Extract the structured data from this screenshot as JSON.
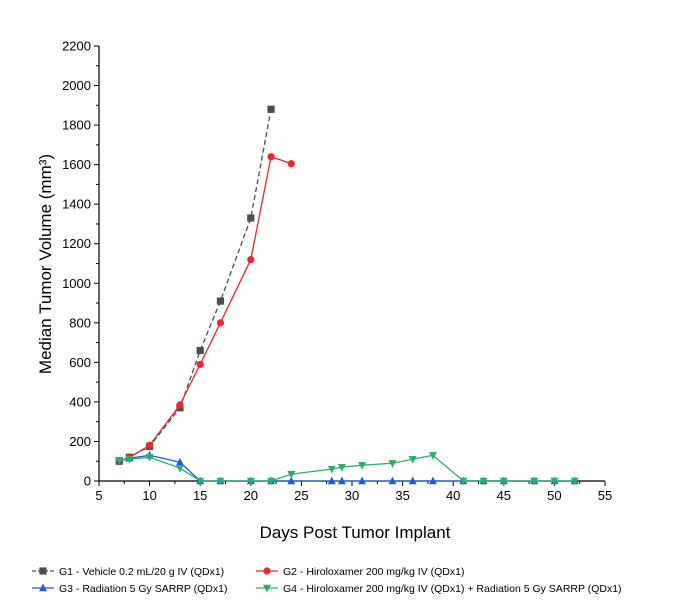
{
  "chart_data": {
    "type": "line",
    "xlabel": "Days Post Tumor Implant",
    "ylabel": "Median Tumor Volume (mm³)",
    "xlim": [
      5,
      55
    ],
    "ylim": [
      0,
      2200
    ],
    "x_ticks": [
      5,
      10,
      15,
      20,
      25,
      30,
      35,
      40,
      45,
      50,
      55
    ],
    "y_ticks": [
      0,
      200,
      400,
      600,
      800,
      1000,
      1200,
      1400,
      1600,
      1800,
      2000,
      2200
    ],
    "legend_position": "bottom",
    "series": [
      {
        "name": "G1 - Vehicle 0.2 mL/20 g IV (QDx1)",
        "color": "#4d4d4d",
        "marker": "square",
        "dashed": true,
        "points": [
          [
            7,
            100
          ],
          [
            8,
            120
          ],
          [
            10,
            175
          ],
          [
            13,
            370
          ],
          [
            15,
            660
          ],
          [
            17,
            910
          ],
          [
            20,
            1330
          ],
          [
            22,
            1880
          ]
        ]
      },
      {
        "name": "G2 - Hiroloxamer 200 mg/kg IV (QDx1)",
        "color": "#e8282b",
        "marker": "circle",
        "dashed": false,
        "points": [
          [
            7,
            100
          ],
          [
            8,
            120
          ],
          [
            10,
            180
          ],
          [
            13,
            385
          ],
          [
            15,
            590
          ],
          [
            17,
            800
          ],
          [
            20,
            1120
          ],
          [
            22,
            1640
          ],
          [
            24,
            1605
          ]
        ]
      },
      {
        "name": "G3 - Radiation 5 Gy SARRP (QDx1)",
        "color": "#1f5fd6",
        "marker": "triangle-up",
        "dashed": false,
        "points": [
          [
            7,
            100
          ],
          [
            8,
            115
          ],
          [
            10,
            130
          ],
          [
            13,
            95
          ],
          [
            15,
            0
          ],
          [
            17,
            0
          ],
          [
            20,
            0
          ],
          [
            22,
            0
          ],
          [
            24,
            0
          ],
          [
            28,
            0
          ],
          [
            29,
            0
          ],
          [
            31,
            0
          ],
          [
            34,
            0
          ],
          [
            36,
            0
          ],
          [
            38,
            0
          ],
          [
            41,
            0
          ],
          [
            43,
            0
          ],
          [
            45,
            0
          ],
          [
            48,
            0
          ],
          [
            50,
            0
          ],
          [
            52,
            0
          ]
        ]
      },
      {
        "name": "G4 - Hiroloxamer 200 mg/kg IV (QDx1) + Radiation 5 Gy SARRP (QDx1)",
        "color": "#2fad6b",
        "marker": "triangle-down",
        "dashed": false,
        "points": [
          [
            7,
            105
          ],
          [
            8,
            110
          ],
          [
            10,
            120
          ],
          [
            13,
            65
          ],
          [
            15,
            0
          ],
          [
            17,
            0
          ],
          [
            20,
            0
          ],
          [
            22,
            0
          ],
          [
            24,
            35
          ],
          [
            28,
            60
          ],
          [
            29,
            70
          ],
          [
            31,
            80
          ],
          [
            34,
            90
          ],
          [
            36,
            110
          ],
          [
            38,
            130
          ],
          [
            41,
            0
          ],
          [
            43,
            0
          ],
          [
            45,
            0
          ],
          [
            48,
            0
          ],
          [
            50,
            0
          ],
          [
            52,
            0
          ]
        ]
      }
    ]
  }
}
